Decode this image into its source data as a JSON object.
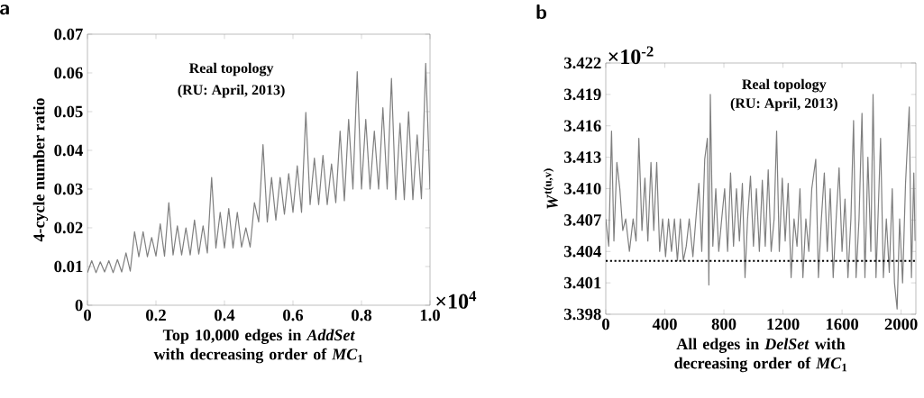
{
  "chart_data": [
    {
      "type": "line",
      "title": "a",
      "xlabel": "Top 10,000 edges in *AddSet* with decreasing order of *MC*$_{1}$",
      "ylabel": "4-cycle number ratio",
      "color": "#7f7f7f",
      "annotations": [
        "Real topology",
        "(RU: April, 2013)",
        "×10$^{4}$"
      ],
      "xlim": [
        0,
        1.0
      ],
      "ylim": [
        0,
        0.07
      ],
      "xticks": [
        0,
        0.2,
        0.4,
        0.6,
        0.8,
        {
          "value": 1.0,
          "label": "1.0"
        }
      ],
      "yticks": [
        {
          "value": 0,
          "label": "0"
        },
        {
          "value": 0.01,
          "label": "0.01"
        },
        {
          "value": 0.02,
          "label": "0.02"
        },
        {
          "value": 0.03,
          "label": "0.03"
        },
        {
          "value": 0.04,
          "label": "0.04"
        },
        {
          "value": 0.05,
          "label": "0.05"
        },
        {
          "value": 0.06,
          "label": "0.06"
        },
        {
          "value": 0.07,
          "label": "0.07"
        }
      ],
      "x": [
        0,
        0.0125,
        0.025,
        0.0375,
        0.05,
        0.0625,
        0.075,
        0.0875,
        0.1,
        0.1125,
        0.125,
        0.1375,
        0.15,
        0.1625,
        0.175,
        0.1875,
        0.2,
        0.2125,
        0.225,
        0.2375,
        0.25,
        0.2625,
        0.275,
        0.2875,
        0.3,
        0.3125,
        0.325,
        0.3375,
        0.35,
        0.3625,
        0.375,
        0.3875,
        0.4,
        0.4125,
        0.425,
        0.4375,
        0.45,
        0.4625,
        0.475,
        0.4875,
        0.5,
        0.5125,
        0.525,
        0.5375,
        0.55,
        0.5625,
        0.575,
        0.5875,
        0.6,
        0.6125,
        0.625,
        0.6375,
        0.65,
        0.6625,
        0.675,
        0.6875,
        0.7,
        0.7125,
        0.725,
        0.7375,
        0.75,
        0.7625,
        0.775,
        0.7875,
        0.8,
        0.8125,
        0.825,
        0.8375,
        0.85,
        0.8625,
        0.875,
        0.8875,
        0.9,
        0.9125,
        0.925,
        0.9375,
        0.95,
        0.9625,
        0.975,
        0.9875,
        1.0
      ],
      "values": [
        0.0084,
        0.0115,
        0.0084,
        0.0112,
        0.0086,
        0.0115,
        0.0084,
        0.0118,
        0.0086,
        0.0135,
        0.0088,
        0.019,
        0.0125,
        0.019,
        0.0125,
        0.0175,
        0.0127,
        0.021,
        0.0127,
        0.0265,
        0.013,
        0.0205,
        0.013,
        0.02,
        0.013,
        0.022,
        0.0132,
        0.0205,
        0.0135,
        0.033,
        0.0148,
        0.024,
        0.0148,
        0.025,
        0.0148,
        0.024,
        0.015,
        0.02,
        0.015,
        0.0265,
        0.0215,
        0.0415,
        0.0215,
        0.033,
        0.022,
        0.033,
        0.0235,
        0.034,
        0.024,
        0.036,
        0.024,
        0.0498,
        0.026,
        0.038,
        0.026,
        0.0387,
        0.026,
        0.0365,
        0.0265,
        0.045,
        0.027,
        0.048,
        0.03,
        0.0603,
        0.03,
        0.048,
        0.03,
        0.045,
        0.03,
        0.051,
        0.03,
        0.0586,
        0.0273,
        0.047,
        0.0273,
        0.05,
        0.0273,
        0.044,
        0.0275,
        0.0625,
        0.03
      ]
    },
    {
      "type": "line",
      "title": "b",
      "xlabel": "All edges in *DelSet* with decreasing order of *MC*$_{1}$",
      "ylabel": "*W*$^{t(u,v)}$",
      "color": "#7f7f7f",
      "annotations": [
        "Real topology",
        "(RU: April, 2013)",
        "×10$^{-2}$"
      ],
      "ref_lines": [
        {
          "axis": "y",
          "value": 3.4031,
          "color": "#000000",
          "line_style": "dotted"
        }
      ],
      "xlim": [
        0,
        2100
      ],
      "ylim": [
        3.398,
        3.422
      ],
      "xticks": [
        0,
        400,
        800,
        1200,
        1600,
        2000
      ],
      "yticks": [
        {
          "value": 3.398,
          "label": "3.398"
        },
        {
          "value": 3.401,
          "label": "3.401"
        },
        {
          "value": 3.404,
          "label": "3.404"
        },
        {
          "value": 3.407,
          "label": "3.407"
        },
        {
          "value": 3.41,
          "label": "3.410"
        },
        {
          "value": 3.413,
          "label": "3.413"
        },
        {
          "value": 3.416,
          "label": "3.416"
        },
        {
          "value": 3.419,
          "label": "3.419"
        },
        {
          "value": 3.422,
          "label": "3.422"
        }
      ],
      "x": [
        0,
        20,
        39,
        55,
        75,
        95,
        115,
        135,
        160,
        185,
        205,
        224,
        245,
        265,
        285,
        306,
        325,
        345,
        365,
        385,
        405,
        425,
        445,
        465,
        485,
        505,
        525,
        545,
        565,
        590,
        610,
        630,
        650,
        670,
        688,
        698,
        708,
        725,
        745,
        765,
        785,
        805,
        825,
        845,
        865,
        885,
        905,
        925,
        943,
        960,
        980,
        1000,
        1020,
        1040,
        1060,
        1080,
        1100,
        1120,
        1140,
        1157,
        1175,
        1195,
        1215,
        1235,
        1255,
        1275,
        1295,
        1315,
        1335,
        1355,
        1375,
        1395,
        1422,
        1440,
        1460,
        1480,
        1500,
        1520,
        1540,
        1560,
        1580,
        1600,
        1620,
        1640,
        1660,
        1678,
        1695,
        1715,
        1735,
        1755,
        1775,
        1795,
        1810,
        1830,
        1850,
        1861,
        1880,
        1900,
        1920,
        1940,
        1955,
        1973,
        1990,
        2010,
        2030,
        2055,
        2070,
        2086,
        2095
      ],
      "values": [
        3.4071,
        3.4045,
        3.4155,
        3.405,
        3.4125,
        3.41,
        3.406,
        3.4071,
        3.404,
        3.4071,
        3.405,
        3.4148,
        3.406,
        3.411,
        3.405,
        3.4125,
        3.406,
        3.4125,
        3.404,
        3.4071,
        3.4035,
        3.4071,
        3.404,
        3.4071,
        3.4031,
        3.4071,
        3.4031,
        3.4045,
        3.4071,
        3.4035,
        3.4071,
        3.4105,
        3.404,
        3.4128,
        3.4148,
        3.4008,
        3.419,
        3.4045,
        3.41,
        3.404,
        3.4071,
        3.41,
        3.404,
        3.4115,
        3.4045,
        3.41,
        3.405,
        3.4105,
        3.4015,
        3.4071,
        3.4112,
        3.4045,
        3.41,
        3.404,
        3.4108,
        3.4045,
        3.4118,
        3.404,
        3.4071,
        3.4155,
        3.404,
        3.411,
        3.405,
        3.4105,
        3.4015,
        3.4071,
        3.4045,
        3.41,
        3.4015,
        3.4071,
        3.404,
        3.41,
        3.4128,
        3.4015,
        3.4071,
        3.4115,
        3.404,
        3.41,
        3.4015,
        3.4071,
        3.412,
        3.404,
        3.409,
        3.4015,
        3.4071,
        3.4165,
        3.4015,
        3.4071,
        3.4172,
        3.4015,
        3.413,
        3.404,
        3.419,
        3.4015,
        3.41,
        3.4148,
        3.4015,
        3.4071,
        3.402,
        3.41,
        3.401,
        3.3985,
        3.4071,
        3.401,
        3.4105,
        3.4178,
        3.4015,
        3.4115,
        3.405
      ]
    }
  ]
}
